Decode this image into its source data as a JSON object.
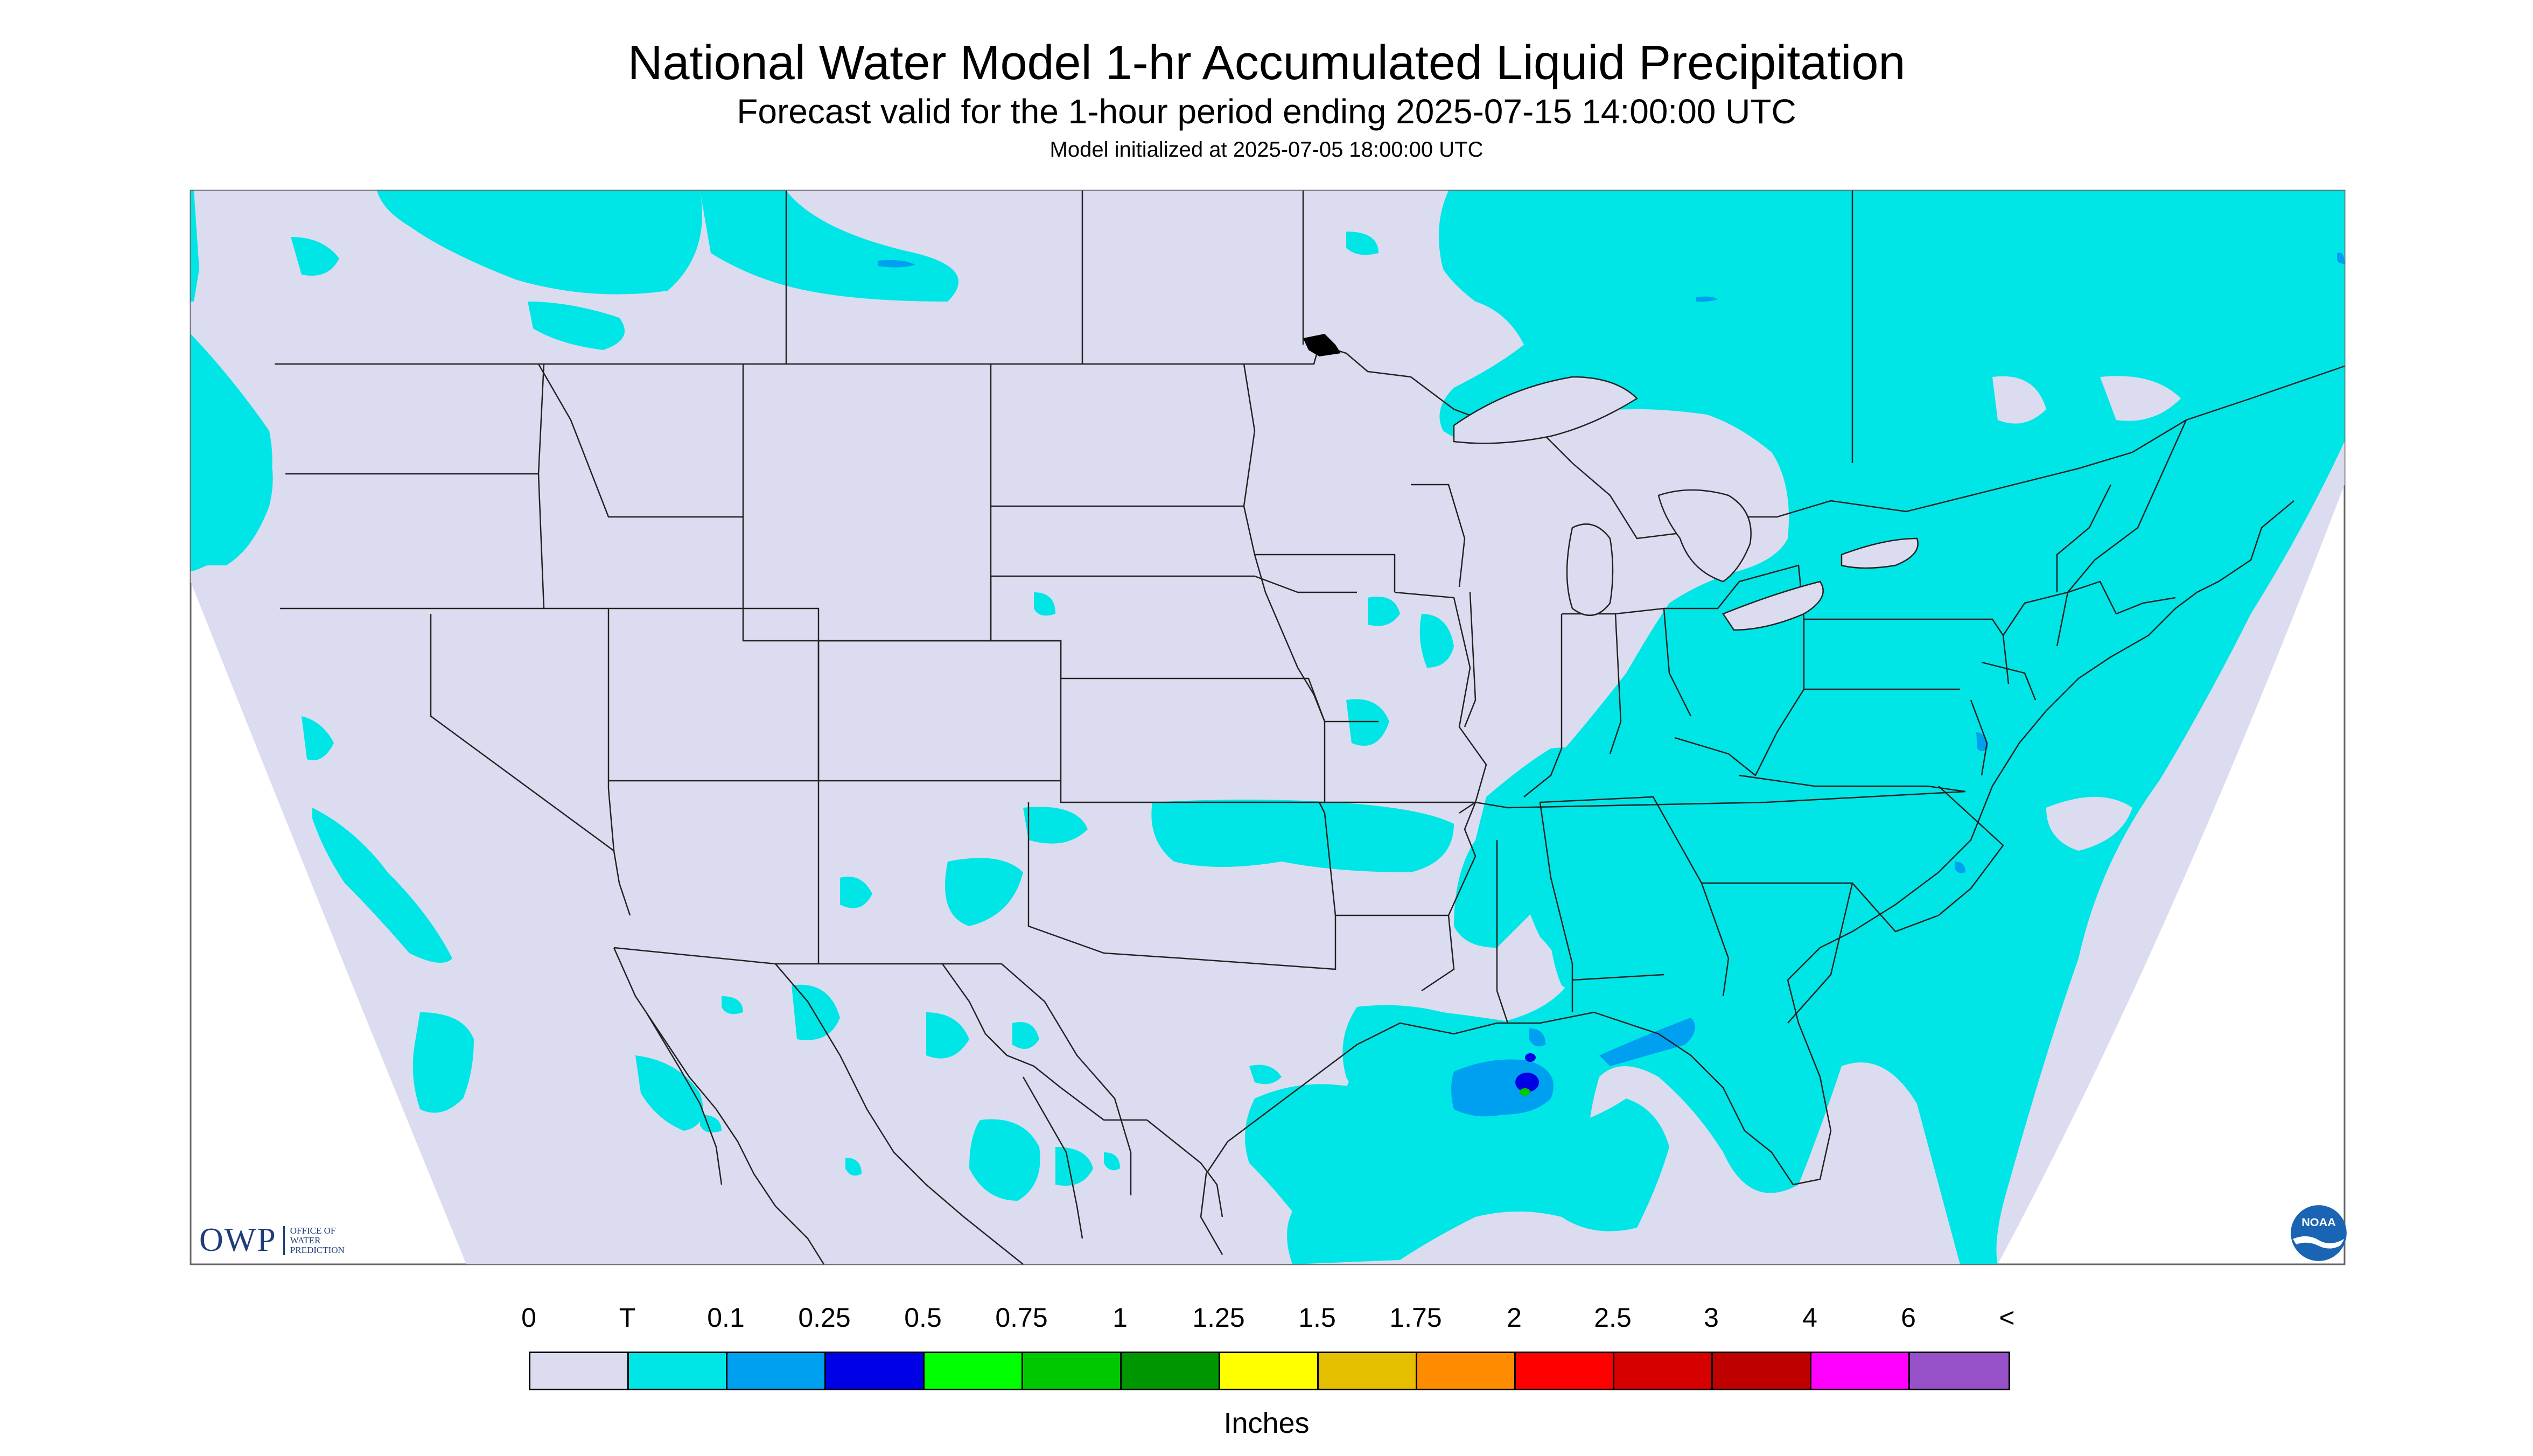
{
  "header": {
    "title": "National Water Model 1-hr Accumulated Liquid Precipitation",
    "subtitle": "Forecast valid for the 1-hour period ending 2025-07-15 14:00:00 UTC",
    "init": "Model initialized at 2025-07-05 18:00:00 UTC"
  },
  "legend": {
    "ticks": [
      "0",
      "T",
      "0.1",
      "0.25",
      "0.5",
      "0.75",
      "1",
      "1.25",
      "1.5",
      "1.75",
      "2",
      "2.5",
      "3",
      "4",
      "6",
      "<"
    ],
    "colors": [
      "#dcdcf0",
      "#00e6e6",
      "#00a0f0",
      "#0000e6",
      "#00ff00",
      "#00c800",
      "#009600",
      "#ffff00",
      "#e6be00",
      "#ff8c00",
      "#ff0000",
      "#d70000",
      "#be0000",
      "#ff00ff",
      "#9650c8"
    ],
    "units": "Inches"
  },
  "logos": {
    "owp_text": "OWP",
    "owp_sub": [
      "OFFICE OF",
      "WATER",
      "PREDICTION"
    ],
    "noaa_text": "NOAA"
  },
  "map": {
    "background_color": "#dcdcf0",
    "precip_color": "#00e6e6",
    "light_rain_color": "#00a0f0",
    "boundary_color": "#222222"
  }
}
